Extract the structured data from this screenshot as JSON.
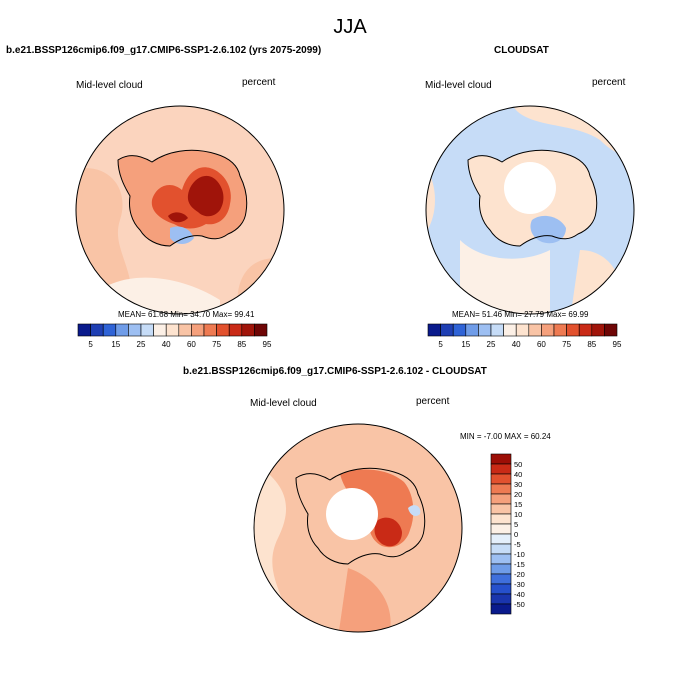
{
  "figure": {
    "title": "JJA",
    "units": "percent",
    "variable": "Mid-level cloud"
  },
  "palettes": {
    "abs_colors": [
      "#0a1a8c",
      "#1f3fb3",
      "#2f63d6",
      "#6f9ce8",
      "#9dbff2",
      "#c6dcf7",
      "#fcf0e6",
      "#fde3cf",
      "#f9c4a6",
      "#f5a07c",
      "#ee7a52",
      "#e2512e",
      "#c92a16",
      "#a0140a",
      "#6e0505"
    ],
    "diff_colors": [
      "#0a1a8c",
      "#1a35ad",
      "#2650cc",
      "#3f6fdc",
      "#6f9ce8",
      "#9dbff2",
      "#c6dcf7",
      "#e4effb",
      "#fcf0e6",
      "#fde3cf",
      "#f9c4a6",
      "#f5a07c",
      "#ee7a52",
      "#e2512e",
      "#c92a16",
      "#9c0e06"
    ],
    "ocean_colors": {
      "model": "#fbd4be",
      "model_warm": "#f5a07c",
      "obs": "#c6dcf7",
      "obs_warm": "#fde3cf",
      "diff": "#f9c4a6"
    },
    "land_colors": {
      "model_core": "#a0140a",
      "model_mid": "#e2512e",
      "model_edge": "#f5a07c",
      "obs_blue": "#9dbff2",
      "diff_core": "#c92a16",
      "diff_mid": "#ee7a52"
    }
  },
  "chart_data": [
    {
      "type": "heatmap",
      "projection": "south polar stereographic",
      "title": "b.e21.BSSP126cmip6.f09_g17.CMIP6-SSP1-2.6.102 (yrs 2075-2099)",
      "left_label": "Mid-level cloud",
      "right_label": "percent",
      "stats": {
        "mean_label": "MEAN=",
        "mean": "61.68",
        "min_label": "Min=",
        "min": "34.70",
        "max_label": "Max=",
        "max": "99.41"
      },
      "colorbar": {
        "orientation": "horizontal",
        "levels": [
          5,
          10,
          15,
          20,
          25,
          30,
          40,
          50,
          55,
          60,
          65,
          75,
          80,
          85,
          95
        ],
        "tick_labels": [
          "5",
          "15",
          "25",
          "40",
          "60",
          "75",
          "85",
          "95"
        ]
      }
    },
    {
      "type": "heatmap",
      "projection": "south polar stereographic",
      "title": "CLOUDSAT",
      "left_label": "Mid-level cloud",
      "right_label": "percent",
      "stats": {
        "mean_label": "MEAN=",
        "mean": "51.46",
        "min_label": "Min=",
        "min": "27.79",
        "max_label": "Max=",
        "max": "69.99"
      },
      "colorbar": {
        "orientation": "horizontal",
        "levels": [
          5,
          10,
          15,
          20,
          25,
          30,
          40,
          50,
          55,
          60,
          65,
          75,
          80,
          85,
          95
        ],
        "tick_labels": [
          "5",
          "15",
          "25",
          "40",
          "60",
          "75",
          "85",
          "95"
        ]
      }
    },
    {
      "type": "heatmap",
      "projection": "south polar stereographic",
      "title": "b.e21.BSSP126cmip6.f09_g17.CMIP6-SSP1-2.6.102 - CLOUDSAT",
      "left_label": "Mid-level cloud",
      "right_label": "percent",
      "stats": {
        "min_label": "MIN =",
        "min": "-7.00",
        "max_label": "MAX =",
        "max": "60.24"
      },
      "colorbar": {
        "orientation": "vertical",
        "tick_labels": [
          "50",
          "40",
          "30",
          "20",
          "15",
          "10",
          "5",
          "0",
          "-5",
          "-10",
          "-15",
          "-20",
          "-30",
          "-40",
          "-50"
        ]
      }
    }
  ]
}
